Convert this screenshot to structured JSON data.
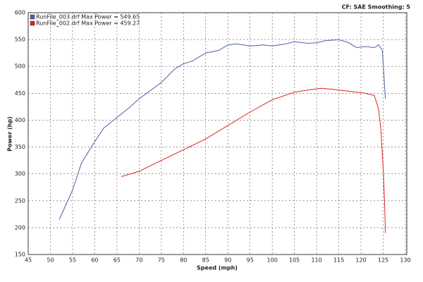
{
  "chart_data": {
    "type": "line",
    "title": "CF: SAE  Smoothing: 5",
    "x_label": "Speed (mph)",
    "y_label": "Power (hp)",
    "xlim": [
      45,
      130
    ],
    "xticks": [
      45,
      50,
      55,
      60,
      65,
      70,
      75,
      80,
      85,
      90,
      95,
      100,
      105,
      110,
      115,
      120,
      125,
      130
    ],
    "ylim": [
      150,
      600
    ],
    "yticks": [
      150,
      200,
      250,
      300,
      350,
      400,
      450,
      500,
      550,
      600
    ],
    "grid": true,
    "legend": "upper left",
    "series": [
      {
        "name": "RunFile_003.drf Max Power = 549.65",
        "color": "#4a5fa8",
        "x": [
          52,
          55,
          57,
          60,
          62,
          65,
          68,
          70,
          75,
          78,
          80,
          82,
          85,
          88,
          90,
          92,
          95,
          98,
          100,
          103,
          105,
          108,
          110,
          112,
          115,
          117,
          119,
          121,
          123,
          124,
          124.8,
          125.5
        ],
        "values": [
          215,
          270,
          320,
          360,
          385,
          405,
          425,
          440,
          470,
          495,
          505,
          510,
          525,
          530,
          540,
          542,
          538,
          540,
          538,
          542,
          546,
          543,
          544,
          548,
          549.65,
          545,
          535,
          537,
          535,
          540,
          530,
          440
        ]
      },
      {
        "name": "RunFile_002.drf Max Power = 459.27",
        "color": "#e02020",
        "x": [
          66,
          70,
          75,
          80,
          85,
          90,
          95,
          100,
          105,
          108,
          111,
          113,
          115,
          118,
          121,
          123,
          124,
          124.5,
          125,
          125.3,
          125.5
        ],
        "values": [
          295,
          305,
          325,
          345,
          365,
          390,
          415,
          438,
          452,
          456,
          459.27,
          458,
          456,
          453,
          450,
          446,
          420,
          380,
          310,
          250,
          190
        ]
      }
    ]
  }
}
